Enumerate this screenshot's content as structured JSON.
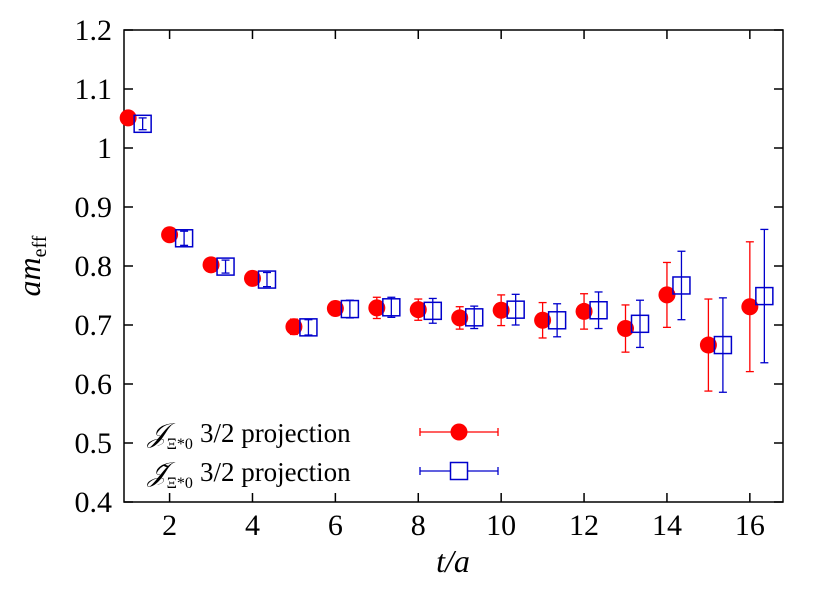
{
  "chart_data": {
    "type": "scatter",
    "xlabel": "t/a",
    "ylabel_main": "am",
    "ylabel_sub": "eff",
    "xlim": [
      0.9,
      16.8
    ],
    "ylim": [
      0.4,
      1.2
    ],
    "xticks": [
      2,
      4,
      6,
      8,
      10,
      12,
      14,
      16
    ],
    "xtick_labels": [
      "2",
      "4",
      "6",
      "8",
      "10",
      "12",
      "14",
      "16"
    ],
    "yticks": [
      0.4,
      0.5,
      0.6,
      0.7,
      0.8,
      0.9,
      1.0,
      1.1,
      1.2
    ],
    "ytick_labels": [
      "0.4",
      "0.5",
      "0.6",
      "0.7",
      "0.8",
      "0.9",
      "1",
      "1.1",
      "1.2"
    ],
    "grid": false,
    "legend_position": "bottom-left",
    "series": [
      {
        "name": "J_{Ξ*0} 3/2 projection",
        "label_symbol": "𝒥",
        "label_sub": "Ξ*0",
        "label_rest": "3/2 projection",
        "color": "#ff0000",
        "marker": "filled-circle",
        "x": [
          1,
          2,
          3,
          4,
          5,
          6,
          7,
          8,
          9,
          10,
          11,
          12,
          13,
          14,
          15,
          16
        ],
        "y": [
          1.051,
          0.853,
          0.802,
          0.779,
          0.697,
          0.728,
          0.729,
          0.726,
          0.712,
          0.725,
          0.708,
          0.723,
          0.694,
          0.751,
          0.666,
          0.731
        ],
        "err": [
          0.006,
          0.009,
          0.008,
          0.012,
          0.013,
          0.012,
          0.018,
          0.018,
          0.019,
          0.026,
          0.03,
          0.03,
          0.04,
          0.055,
          0.078,
          0.11
        ]
      },
      {
        "name": "J̃_{Ξ*0} 3/2 projection",
        "label_symbol": "𝒥̃",
        "label_sub": "Ξ*0",
        "label_rest": "3/2 projection",
        "color": "#0000cc",
        "marker": "open-square",
        "x": [
          1.35,
          2.35,
          3.35,
          4.35,
          5.35,
          6.35,
          7.35,
          8.35,
          9.35,
          10.35,
          11.35,
          12.35,
          13.35,
          14.35,
          15.35,
          16.35
        ],
        "y": [
          1.041,
          0.847,
          0.799,
          0.777,
          0.696,
          0.727,
          0.73,
          0.724,
          0.713,
          0.726,
          0.708,
          0.725,
          0.702,
          0.767,
          0.666,
          0.749
        ],
        "err": [
          0.01,
          0.012,
          0.011,
          0.012,
          0.013,
          0.015,
          0.017,
          0.021,
          0.019,
          0.026,
          0.028,
          0.031,
          0.04,
          0.058,
          0.08,
          0.113
        ]
      }
    ]
  }
}
